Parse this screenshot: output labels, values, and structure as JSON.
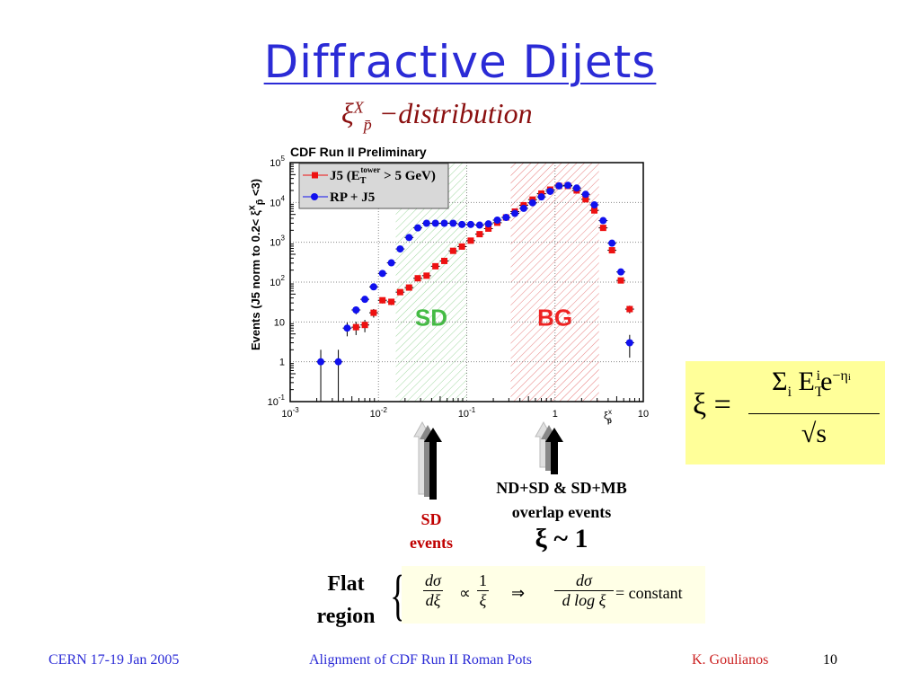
{
  "slide": {
    "title": "Diffractive Dijets",
    "subtitle_symbol": "ξ",
    "subtitle_sup": "X",
    "subtitle_sub": "p̄",
    "subtitle_text": " −distribution",
    "ylabel": "Events (J5 norm to 0.2< ξ",
    "ylabel_sup": "x",
    "ylabel_sub": "p̄",
    "ylabel_end": " <3)",
    "xi_formula": {
      "lhs": "ξ =",
      "num_sigma": "Σ",
      "num_i": "i",
      "num_E": "E",
      "num_sup_i": "i",
      "num_sub_T": "T",
      "num_e": "e",
      "num_exp": "−η",
      "num_exp_i": "i",
      "den": "√s"
    },
    "sd_events": [
      "SD",
      "events"
    ],
    "overlap": [
      "ND+SD & SD+MB",
      "overlap events"
    ],
    "xi_approx": "ξ ~ 1",
    "flat_region": [
      "Flat",
      "region"
    ],
    "eq": {
      "dsigma": "dσ",
      "dxi": "dξ",
      "prop": "∝",
      "one": "1",
      "xi": "ξ",
      "implies": "⇒",
      "dlogxi": "d log ξ",
      "equals_const": "= constant"
    },
    "footer": {
      "left": "CERN 17-19 Jan 2005",
      "center": "Alignment of  CDF Run II Roman Pots",
      "author": "K. Goulianos",
      "page": "10"
    }
  },
  "colors": {
    "title": "#2b2bd6",
    "red_series": "#ee1111",
    "blue_series": "#1111ee",
    "sd_region": "#44bb44",
    "bg_region": "#ee2222",
    "highlight": "#ffff99"
  },
  "chart_data": {
    "type": "scatter",
    "title": "CDF Run II Preliminary",
    "xlabel": "ξ",
    "xlabel_sup": "x",
    "xlabel_sub": "p̄",
    "ylabel": "Events (J5 norm to 0.2< ξ^x_p̄ <3)",
    "xscale": "log",
    "yscale": "log",
    "xlim": [
      0.001,
      10
    ],
    "ylim": [
      0.1,
      100000
    ],
    "grid": true,
    "legend_position": "top-left",
    "x_ticks": [
      {
        "value": 0.001,
        "base": "10",
        "exp": "-3"
      },
      {
        "value": 0.01,
        "base": "10",
        "exp": "-2"
      },
      {
        "value": 0.1,
        "base": "10",
        "exp": "-1"
      },
      {
        "value": 1,
        "base": "1",
        "exp": ""
      },
      {
        "value": 10,
        "base": "10",
        "exp": ""
      }
    ],
    "y_ticks": [
      {
        "value": 0.1,
        "base": "10",
        "exp": "-1"
      },
      {
        "value": 1,
        "base": "1",
        "exp": ""
      },
      {
        "value": 10,
        "base": "10",
        "exp": ""
      },
      {
        "value": 100,
        "base": "10",
        "exp": "2"
      },
      {
        "value": 1000,
        "base": "10",
        "exp": "3"
      },
      {
        "value": 10000,
        "base": "10",
        "exp": "4"
      },
      {
        "value": 100000,
        "base": "10",
        "exp": "5"
      }
    ],
    "regions": [
      {
        "label": "SD",
        "x_range": [
          0.0157,
          0.1
        ],
        "color": "#44bb44"
      },
      {
        "label": "BG",
        "x_range": [
          0.315,
          3.15
        ],
        "color": "#ee2222"
      }
    ],
    "series": [
      {
        "name": "J5 (E_T^tower > 5 GeV)",
        "legend_main": "J5 (E",
        "legend_sub": "T",
        "legend_sup": "tower",
        "legend_end": " > 5 GeV)",
        "marker": "square",
        "color": "#ee1111",
        "x": [
          0.00557,
          0.00701,
          0.00882,
          0.0111,
          0.014,
          0.0176,
          0.0222,
          0.0279,
          0.0351,
          0.0442,
          0.0557,
          0.0701,
          0.0882,
          0.111,
          0.14,
          0.176,
          0.222,
          0.279,
          0.351,
          0.442,
          0.557,
          0.701,
          0.882,
          1.11,
          1.4,
          1.76,
          2.22,
          2.79,
          3.51,
          4.42,
          5.57,
          7.01
        ],
        "y": [
          7.4,
          8.4,
          17,
          35,
          32,
          56,
          73,
          125,
          145,
          250,
          340,
          610,
          780,
          1100,
          1600,
          2200,
          3100,
          4200,
          5900,
          8500,
          11800,
          16700,
          21000,
          26000,
          26000,
          20000,
          12000,
          6300,
          2300,
          630,
          110,
          21
        ]
      },
      {
        "name": "RP + J5",
        "legend_main": "RP + J5",
        "marker": "circle",
        "color": "#1111ee",
        "x": [
          0.00222,
          0.00351,
          0.00442,
          0.00557,
          0.00701,
          0.00882,
          0.0111,
          0.014,
          0.0176,
          0.0222,
          0.0279,
          0.0351,
          0.0442,
          0.0557,
          0.0701,
          0.0882,
          0.111,
          0.14,
          0.176,
          0.222,
          0.279,
          0.351,
          0.442,
          0.557,
          0.701,
          0.882,
          1.11,
          1.4,
          1.76,
          2.22,
          2.79,
          3.51,
          4.42,
          5.57,
          7.01
        ],
        "y": [
          1,
          1,
          7,
          20,
          37,
          76,
          165,
          305,
          680,
          1320,
          2300,
          3000,
          3000,
          3000,
          3000,
          2800,
          2800,
          2700,
          2900,
          3600,
          4200,
          5300,
          7100,
          9800,
          13800,
          19000,
          26000,
          27000,
          23000,
          16000,
          8700,
          3500,
          950,
          180,
          3
        ]
      }
    ]
  }
}
